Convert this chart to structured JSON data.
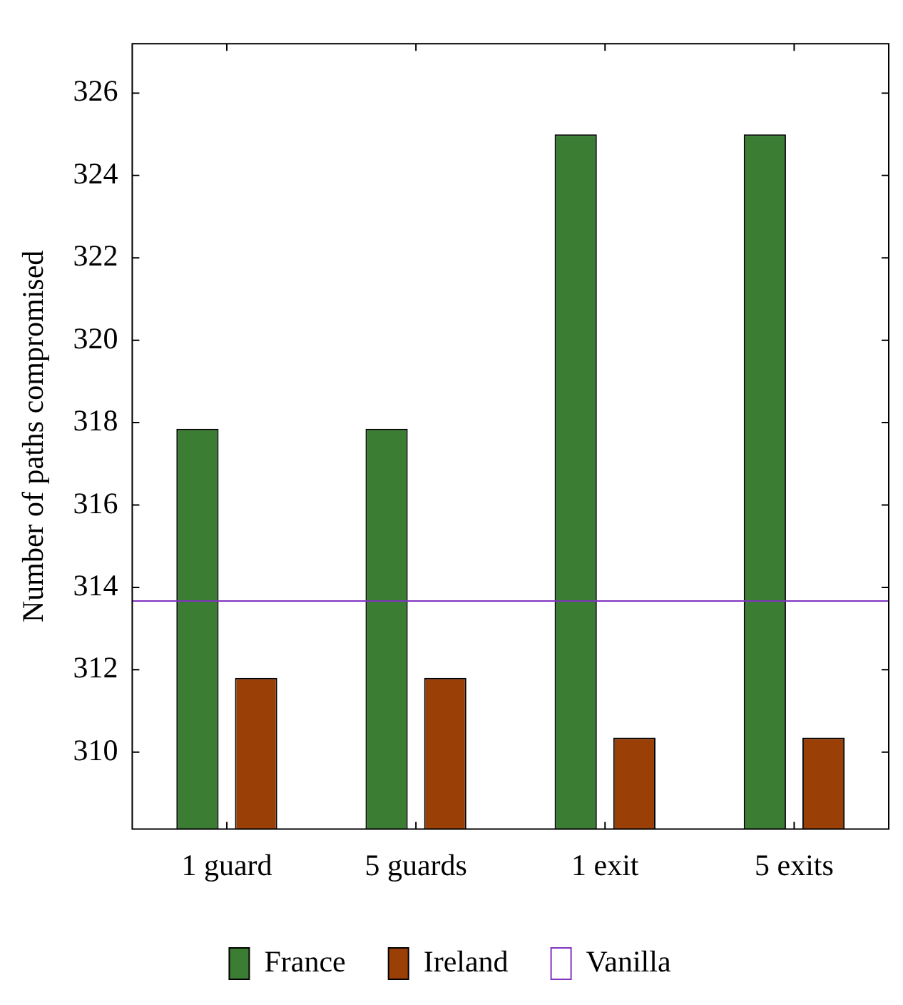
{
  "chart_data": {
    "type": "bar",
    "ylabel": "Number of paths compromised",
    "categories": [
      "1 guard",
      "5 guards",
      "1 exit",
      "5 exits"
    ],
    "series": [
      {
        "name": "France",
        "color": "#3a7d33",
        "values": [
          317.85,
          317.85,
          325,
          325
        ]
      },
      {
        "name": "Ireland",
        "color": "#9a3f06",
        "values": [
          311.8,
          311.8,
          310.35,
          310.35
        ]
      }
    ],
    "ref_lines": [
      {
        "axis": "y",
        "value": 313.67,
        "label": "Vanilla",
        "color": "#8033c0"
      }
    ],
    "ylim": [
      308.13,
      327.2
    ],
    "yticks": [
      310,
      312,
      314,
      316,
      318,
      320,
      322,
      324,
      326
    ],
    "grid": false,
    "legend": "bottom"
  }
}
